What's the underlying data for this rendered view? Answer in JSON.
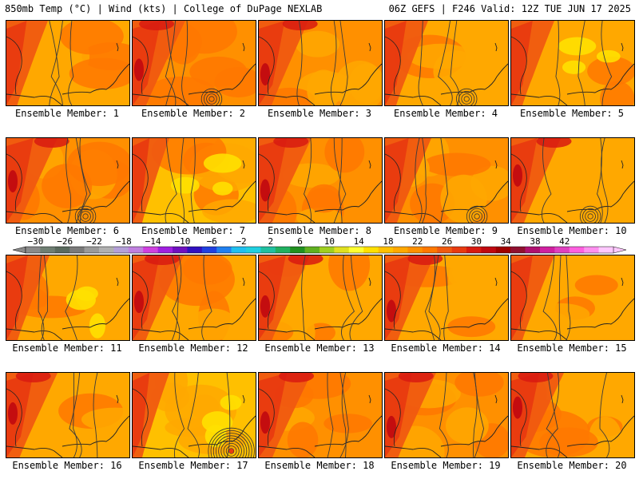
{
  "header": {
    "left": "850mb Temp (°C) | Wind (kts) | College of DuPage NEXLAB",
    "right": "06Z GEFS | F246 Valid: 12Z TUE JUN 17 2025"
  },
  "members": [
    {
      "label": "Ensemble Member: 1",
      "warmth": 0.45,
      "west_heat": 0.55,
      "low_system": 0
    },
    {
      "label": "Ensemble Member: 2",
      "warmth": 0.75,
      "west_heat": 0.9,
      "low_system": 1
    },
    {
      "label": "Ensemble Member: 3",
      "warmth": 0.6,
      "west_heat": 0.8,
      "low_system": 0
    },
    {
      "label": "Ensemble Member: 4",
      "warmth": 0.45,
      "west_heat": 0.6,
      "low_system": 1
    },
    {
      "label": "Ensemble Member: 5",
      "warmth": 0.35,
      "west_heat": 0.6,
      "low_system": 0
    },
    {
      "label": "Ensemble Member: 6",
      "warmth": 0.6,
      "west_heat": 0.85,
      "low_system": 1
    },
    {
      "label": "Ensemble Member: 7",
      "warmth": 0.3,
      "west_heat": 0.4,
      "low_system": 0
    },
    {
      "label": "Ensemble Member: 8",
      "warmth": 0.65,
      "west_heat": 0.9,
      "low_system": 0
    },
    {
      "label": "Ensemble Member: 9",
      "warmth": 0.55,
      "west_heat": 0.7,
      "low_system": 1
    },
    {
      "label": "Ensemble Member: 10",
      "warmth": 0.4,
      "west_heat": 0.8,
      "low_system": 1
    },
    {
      "label": "Ensemble Member: 11",
      "warmth": 0.35,
      "west_heat": 0.6,
      "low_system": 0
    },
    {
      "label": "Ensemble Member: 12",
      "warmth": 0.45,
      "west_heat": 0.85,
      "low_system": 0
    },
    {
      "label": "Ensemble Member: 13",
      "warmth": 0.5,
      "west_heat": 0.85,
      "low_system": 0
    },
    {
      "label": "Ensemble Member: 14",
      "warmth": 0.45,
      "west_heat": 0.8,
      "low_system": 0
    },
    {
      "label": "Ensemble Member: 15",
      "warmth": 0.45,
      "west_heat": 0.6,
      "low_system": 0
    },
    {
      "label": "Ensemble Member: 16",
      "warmth": 0.4,
      "west_heat": 0.85,
      "low_system": 0
    },
    {
      "label": "Ensemble Member: 17",
      "warmth": 0.2,
      "west_heat": 0.4,
      "low_system": 2
    },
    {
      "label": "Ensemble Member: 18",
      "warmth": 0.7,
      "west_heat": 0.9,
      "low_system": 0
    },
    {
      "label": "Ensemble Member: 19",
      "warmth": 0.55,
      "west_heat": 0.85,
      "low_system": 0
    },
    {
      "label": "Ensemble Member: 20",
      "warmth": 0.45,
      "west_heat": 0.9,
      "low_system": 0
    }
  ],
  "colorbar": {
    "labels": [
      "−30",
      "−26",
      "−22",
      "−18",
      "−14",
      "−10",
      "−6",
      "−2",
      "2",
      "6",
      "10",
      "14",
      "18",
      "22",
      "26",
      "30",
      "34",
      "38",
      "42"
    ],
    "colors": [
      "#8a8a8a",
      "#6e7e72",
      "#5a6a5e",
      "#7a7a7a",
      "#9a9a9a",
      "#b0b0b0",
      "#b4a0d8",
      "#c080e0",
      "#d040e0",
      "#a020e0",
      "#7010c0",
      "#3010c0",
      "#2040e0",
      "#2080f0",
      "#20c0f0",
      "#20d0e0",
      "#20c0a0",
      "#20b060",
      "#209020",
      "#60b020",
      "#a0d020",
      "#e0e020",
      "#ffff30",
      "#ffe000",
      "#ffc000",
      "#ffa800",
      "#ff9000",
      "#ff7800",
      "#f05a10",
      "#e83a10",
      "#d81a10",
      "#c00810",
      "#a00000",
      "#901030",
      "#b01070",
      "#d020a0",
      "#e040c0",
      "#ff60e0",
      "#ff90f0",
      "#ffc8ff"
    ]
  }
}
